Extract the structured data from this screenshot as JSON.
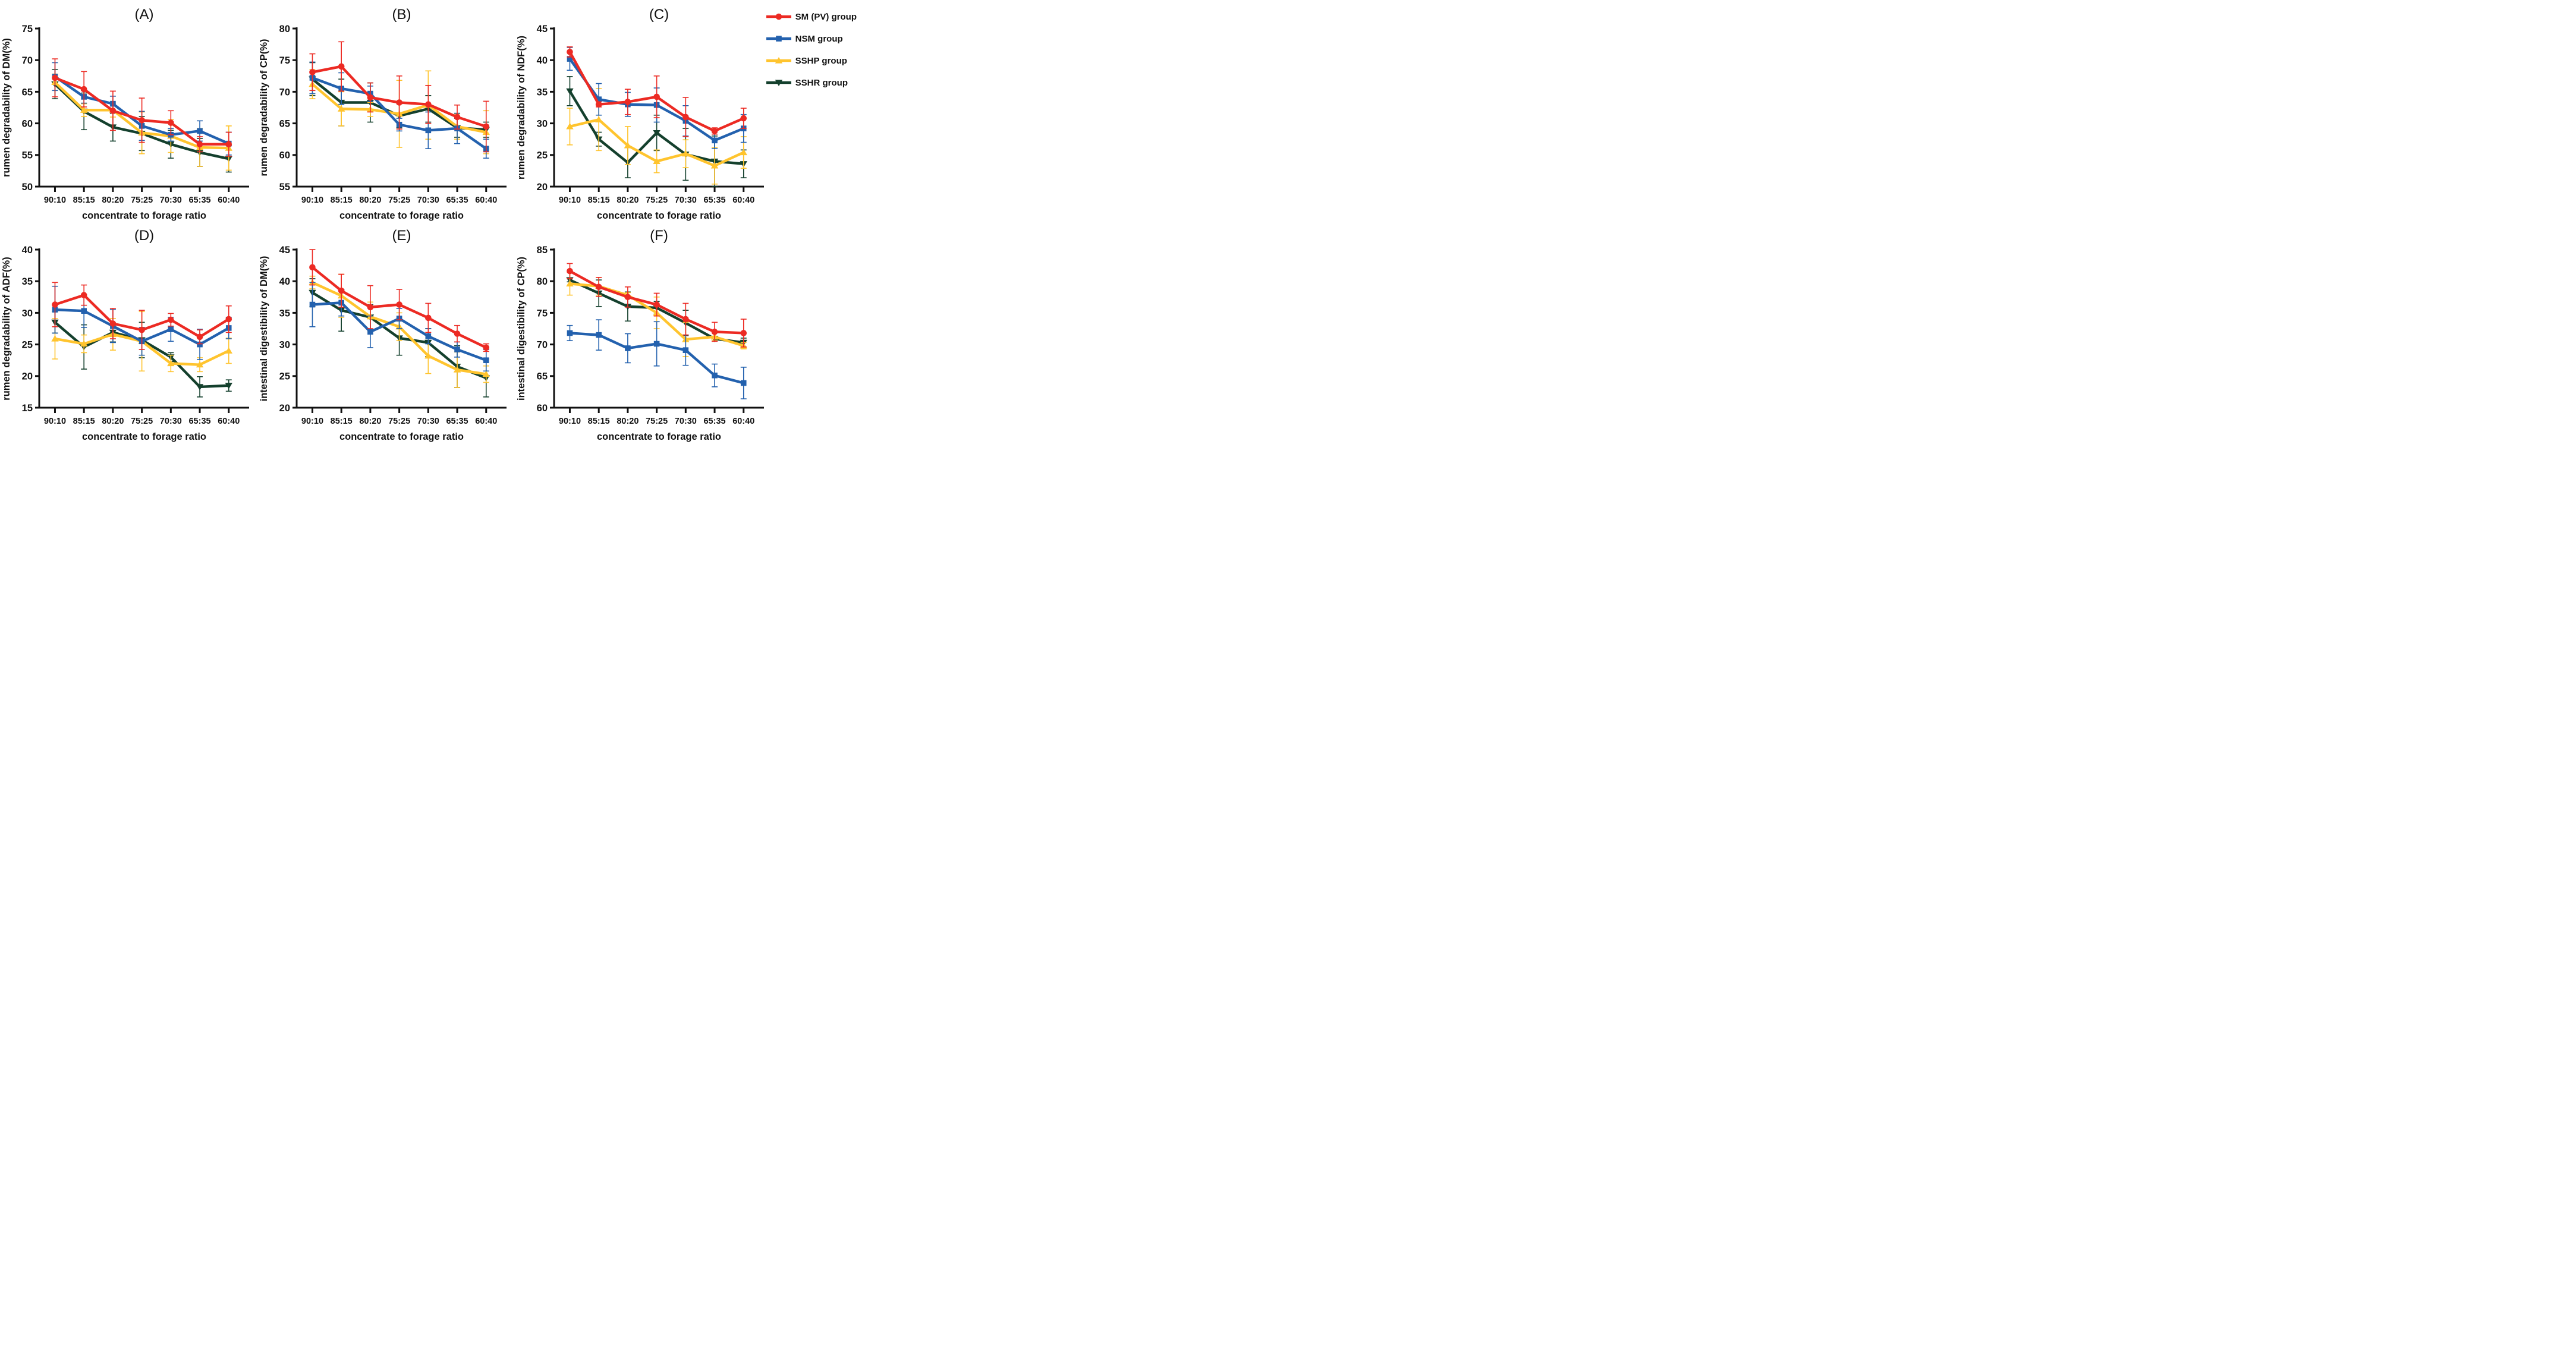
{
  "legend": {
    "items": [
      {
        "label": "SM (PV) group",
        "color": "#EC2A23",
        "marker": "circle"
      },
      {
        "label": "NSM group",
        "color": "#2361AE",
        "marker": "square"
      },
      {
        "label": "SSHP group",
        "color": "#FFC42E",
        "marker": "triangle-up"
      },
      {
        "label": "SSHR group",
        "color": "#14402D",
        "marker": "triangle-down"
      }
    ]
  },
  "chart_data": [
    {
      "type": "line",
      "title": "(A)",
      "ylabel": "rumen degradability of DM(%)",
      "xlabel": "concentrate to forage ratio",
      "ylim": [
        50,
        75
      ],
      "ytick_step": 5,
      "categories": [
        "90:10",
        "85:15",
        "80:20",
        "75:25",
        "70:30",
        "65:35",
        "60:40"
      ],
      "series": [
        {
          "name": "SM (PV) group",
          "values": [
            67.2,
            65.4,
            62.0,
            60.5,
            60.1,
            56.7,
            56.7
          ],
          "errors": [
            3.0,
            2.8,
            3.1,
            3.5,
            1.9,
            1.2,
            1.9
          ]
        },
        {
          "name": "NSM group",
          "values": [
            67.4,
            64.2,
            63.1,
            59.6,
            58.2,
            58.8,
            56.8
          ],
          "errors": [
            2.2,
            1.0,
            1.2,
            2.3,
            1.0,
            1.6,
            1.8
          ]
        },
        {
          "name": "SSHP group",
          "values": [
            66.5,
            62.1,
            62.1,
            58.5,
            58.0,
            56.2,
            56.1
          ],
          "errors": [
            1.3,
            1.0,
            1.1,
            3.3,
            2.6,
            3.0,
            3.5
          ]
        },
        {
          "name": "SSHR group",
          "values": [
            66.2,
            61.9,
            59.4,
            58.4,
            56.7,
            55.4,
            54.4
          ],
          "errors": [
            2.3,
            2.9,
            2.2,
            2.7,
            2.2,
            2.2,
            2.1
          ]
        }
      ]
    },
    {
      "type": "line",
      "title": "(B)",
      "ylabel": "rumen degradability of CP(%)",
      "xlabel": "concentrate to forage ratio",
      "ylim": [
        55,
        80
      ],
      "ytick_step": 5,
      "categories": [
        "90:10",
        "85:15",
        "80:20",
        "75:25",
        "70:30",
        "65:35",
        "60:40"
      ],
      "series": [
        {
          "name": "SM (PV) group",
          "values": [
            73.1,
            74.0,
            69.1,
            68.3,
            68.0,
            66.0,
            64.5
          ],
          "errors": [
            2.9,
            3.9,
            2.3,
            4.2,
            3.0,
            1.9,
            4.0
          ]
        },
        {
          "name": "NSM group",
          "values": [
            72.2,
            70.5,
            69.7,
            64.8,
            63.9,
            64.2,
            61.0
          ],
          "errors": [
            2.5,
            2.5,
            1.2,
            1.0,
            2.9,
            2.4,
            1.5
          ]
        },
        {
          "name": "SSHP group",
          "values": [
            71.2,
            67.3,
            67.2,
            66.5,
            67.9,
            64.5,
            63.6
          ],
          "errors": [
            2.3,
            2.7,
            1.1,
            5.3,
            5.4,
            2.0,
            3.4
          ]
        },
        {
          "name": "SSHR group",
          "values": [
            72.0,
            68.3,
            68.3,
            66.2,
            67.3,
            64.3,
            64.0
          ],
          "errors": [
            2.6,
            3.7,
            3.1,
            1.9,
            2.1,
            1.5,
            1.2
          ]
        }
      ]
    },
    {
      "type": "line",
      "title": "(C)",
      "ylabel": "rumen degradability of NDF(%)",
      "xlabel": "concentrate to forage ratio",
      "ylim": [
        20,
        45
      ],
      "ytick_step": 5,
      "categories": [
        "90:10",
        "85:15",
        "80:20",
        "75:25",
        "70:30",
        "65:35",
        "60:40"
      ],
      "series": [
        {
          "name": "SM (PV) group",
          "values": [
            41.3,
            33.0,
            33.4,
            34.2,
            31.0,
            28.8,
            30.8
          ],
          "errors": [
            0.8,
            0.4,
            2.0,
            3.3,
            3.1,
            0.5,
            1.6
          ]
        },
        {
          "name": "NSM group",
          "values": [
            40.2,
            33.8,
            33.0,
            32.9,
            30.4,
            27.3,
            29.2
          ],
          "errors": [
            1.8,
            2.5,
            1.9,
            2.7,
            2.4,
            1.3,
            2.2
          ]
        },
        {
          "name": "SSHP group",
          "values": [
            29.5,
            30.6,
            26.5,
            24.0,
            25.2,
            23.3,
            25.4
          ],
          "errors": [
            2.9,
            4.9,
            3.0,
            1.8,
            2.2,
            2.9,
            2.5
          ]
        },
        {
          "name": "SSHR group",
          "values": [
            35.1,
            27.5,
            23.8,
            28.5,
            25.1,
            24.0,
            23.6
          ],
          "errors": [
            2.3,
            1.1,
            2.4,
            2.8,
            4.1,
            4.0,
            2.2
          ]
        }
      ]
    },
    {
      "type": "line",
      "title": "(D)",
      "ylabel": "rumen degradability of ADF(%)",
      "xlabel": "concentrate to forage ratio",
      "ylim": [
        15,
        40
      ],
      "ytick_step": 5,
      "categories": [
        "90:10",
        "85:15",
        "80:20",
        "75:25",
        "70:30",
        "65:35",
        "60:40"
      ],
      "series": [
        {
          "name": "SM (PV) group",
          "values": [
            31.3,
            32.8,
            28.3,
            27.3,
            28.9,
            26.2,
            29.0
          ],
          "errors": [
            3.5,
            1.6,
            2.4,
            3.1,
            1.0,
            1.1,
            2.1
          ]
        },
        {
          "name": "NSM group",
          "values": [
            30.5,
            30.3,
            27.9,
            25.5,
            27.4,
            25.0,
            27.6
          ],
          "errors": [
            3.7,
            2.6,
            2.6,
            2.2,
            1.9,
            2.4,
            1.7
          ]
        },
        {
          "name": "SSHP group",
          "values": [
            25.9,
            25.1,
            26.6,
            25.5,
            22.0,
            21.8,
            24.0
          ],
          "errors": [
            3.2,
            1.4,
            2.5,
            4.7,
            1.3,
            1.1,
            2.0
          ]
        },
        {
          "name": "SSHR group",
          "values": [
            28.5,
            24.6,
            26.9,
            25.7,
            23.0,
            18.3,
            18.5
          ],
          "errors": [
            1.7,
            3.5,
            1.5,
            2.8,
            0.7,
            1.6,
            0.9
          ]
        }
      ]
    },
    {
      "type": "line",
      "title": "(E)",
      "ylabel": "intestinal digestibility of DM(%)",
      "xlabel": "concentrate to forage ratio",
      "ylim": [
        20,
        45
      ],
      "ytick_step": 5,
      "categories": [
        "90:10",
        "85:15",
        "80:20",
        "75:25",
        "70:30",
        "65:35",
        "60:40"
      ],
      "series": [
        {
          "name": "SM (PV) group",
          "values": [
            42.2,
            38.5,
            35.9,
            36.3,
            34.2,
            31.7,
            29.5
          ],
          "errors": [
            2.8,
            2.6,
            3.4,
            2.4,
            2.3,
            1.3,
            0.6
          ]
        },
        {
          "name": "NSM group",
          "values": [
            36.3,
            36.6,
            32.0,
            34.1,
            31.3,
            29.2,
            27.5
          ],
          "errors": [
            3.5,
            2.1,
            2.5,
            1.6,
            1.2,
            1.2,
            1.7
          ]
        },
        {
          "name": "SSHP group",
          "values": [
            39.8,
            37.7,
            34.4,
            32.8,
            28.2,
            26.0,
            25.3
          ],
          "errors": [
            1.0,
            3.4,
            2.3,
            2.2,
            2.8,
            2.8,
            1.3
          ]
        },
        {
          "name": "SSHR group",
          "values": [
            38.2,
            35.4,
            34.3,
            31.0,
            30.3,
            26.5,
            24.7
          ],
          "errors": [
            2.2,
            3.3,
            2.0,
            2.7,
            2.2,
            3.3,
            3.0
          ]
        }
      ]
    },
    {
      "type": "line",
      "title": "(F)",
      "ylabel": "intestinal digestibility of CP(%)",
      "xlabel": "concentrate to forage ratio",
      "ylim": [
        60,
        85
      ],
      "ytick_step": 5,
      "categories": [
        "90:10",
        "85:15",
        "80:20",
        "75:25",
        "70:30",
        "65:35",
        "60:40"
      ],
      "series": [
        {
          "name": "SM (PV) group",
          "values": [
            81.6,
            79.1,
            77.5,
            76.3,
            74.0,
            72.0,
            71.8
          ],
          "errors": [
            1.2,
            1.5,
            1.6,
            1.8,
            2.5,
            1.5,
            2.2
          ]
        },
        {
          "name": "NSM group",
          "values": [
            71.8,
            71.5,
            69.4,
            70.1,
            69.1,
            65.1,
            63.9
          ],
          "errors": [
            1.2,
            2.4,
            2.3,
            3.5,
            2.4,
            1.8,
            2.5
          ]
        },
        {
          "name": "SSHP group",
          "values": [
            79.6,
            79.2,
            77.8,
            75.0,
            70.8,
            71.2,
            69.8
          ],
          "errors": [
            1.8,
            1.4,
            0.4,
            2.5,
            2.7,
            0.6,
            0.5
          ]
        },
        {
          "name": "SSHR group",
          "values": [
            80.2,
            78.1,
            76.0,
            75.8,
            73.4,
            70.9,
            70.3
          ],
          "errors": [
            0.3,
            2.1,
            2.3,
            1.0,
            2.0,
            0.4,
            0.7
          ]
        }
      ]
    }
  ]
}
